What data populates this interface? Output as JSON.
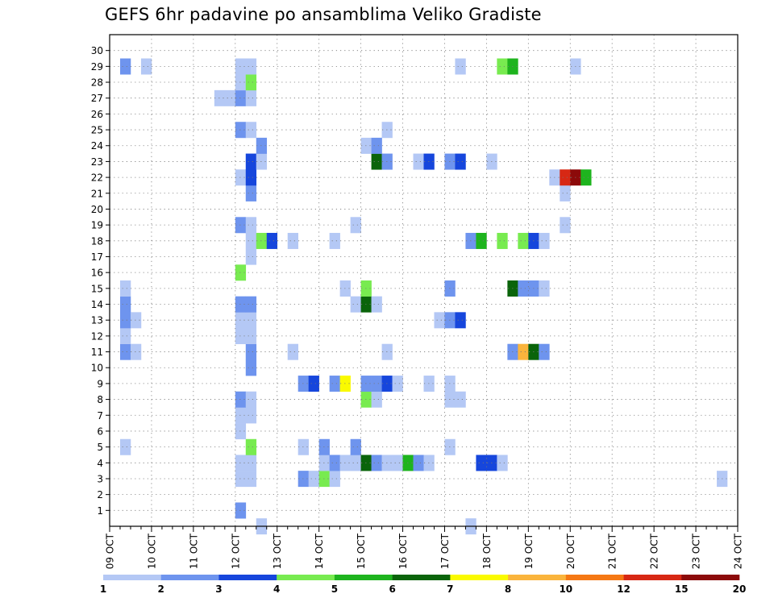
{
  "chart_data": {
    "type": "heatmap",
    "title": "GEFS 6hr padavine po ansamblima Veliko Gradiste",
    "x_ticks": [
      "09 OCT",
      "10 OCT",
      "11 OCT",
      "12 OCT",
      "13 OCT",
      "14 OCT",
      "15 OCT",
      "16 OCT",
      "17 OCT",
      "18 OCT",
      "19 OCT",
      "20 OCT",
      "21 OCT",
      "22 OCT",
      "23 OCT",
      "24 OCT"
    ],
    "y_ticks": [
      "1",
      "2",
      "3",
      "4",
      "5",
      "6",
      "7",
      "8",
      "9",
      "10",
      "11",
      "12",
      "13",
      "14",
      "15",
      "16",
      "17",
      "18",
      "19",
      "20",
      "21",
      "22",
      "23",
      "24",
      "25",
      "26",
      "27",
      "28",
      "29",
      "30"
    ],
    "x_range": [
      "09 OCT 00Z",
      "24 OCT 00Z"
    ],
    "y_range": [
      0,
      30
    ],
    "grid": true,
    "colorbar": {
      "labels": [
        "1",
        "2",
        "3",
        "4",
        "5",
        "6",
        "7",
        "8",
        "10",
        "12",
        "15",
        "20"
      ],
      "colors": [
        "#b4c8f5",
        "#6e94ee",
        "#1646dc",
        "#78eb50",
        "#1eb41e",
        "#0a640a",
        "#fafa00",
        "#fab43c",
        "#f57814",
        "#d72814",
        "#8c0a0a"
      ]
    },
    "x_time_axis_note": "x values are forecast steps from 09 OCT 00Z in 6-hour units",
    "cells": [
      [
        1,
        12,
        1
      ],
      [
        1,
        12,
        2
      ],
      [
        3,
        12,
        1
      ],
      [
        3,
        13,
        1
      ],
      [
        3,
        18,
        2
      ],
      [
        3,
        19,
        1
      ],
      [
        3,
        20,
        4
      ],
      [
        3,
        21,
        1
      ],
      [
        3,
        58,
        1
      ],
      [
        4,
        12,
        1
      ],
      [
        4,
        13,
        1
      ],
      [
        4,
        20,
        1
      ],
      [
        4,
        21,
        2
      ],
      [
        4,
        22,
        1
      ],
      [
        4,
        23,
        1
      ],
      [
        4,
        24,
        6
      ],
      [
        4,
        25,
        2
      ],
      [
        4,
        26,
        1
      ],
      [
        4,
        27,
        1
      ],
      [
        4,
        28,
        5
      ],
      [
        4,
        29,
        2
      ],
      [
        4,
        30,
        1
      ],
      [
        4,
        35,
        3
      ],
      [
        4,
        36,
        3
      ],
      [
        4,
        37,
        1
      ],
      [
        5,
        1,
        1
      ],
      [
        5,
        13,
        4
      ],
      [
        5,
        18,
        1
      ],
      [
        5,
        20,
        2
      ],
      [
        5,
        23,
        2
      ],
      [
        5,
        32,
        1
      ],
      [
        6,
        12,
        1
      ],
      [
        7,
        12,
        1
      ],
      [
        7,
        13,
        1
      ],
      [
        8,
        12,
        2
      ],
      [
        8,
        13,
        1
      ],
      [
        8,
        24,
        4
      ],
      [
        8,
        25,
        1
      ],
      [
        8,
        32,
        1
      ],
      [
        8,
        33,
        1
      ],
      [
        9,
        18,
        2
      ],
      [
        9,
        19,
        3
      ],
      [
        9,
        21,
        2
      ],
      [
        9,
        22,
        7
      ],
      [
        9,
        24,
        2
      ],
      [
        9,
        25,
        2
      ],
      [
        9,
        26,
        3
      ],
      [
        9,
        27,
        1
      ],
      [
        9,
        30,
        1
      ],
      [
        9,
        32,
        1
      ],
      [
        10,
        13,
        2
      ],
      [
        11,
        1,
        2
      ],
      [
        11,
        2,
        1
      ],
      [
        11,
        13,
        2
      ],
      [
        11,
        17,
        1
      ],
      [
        11,
        26,
        1
      ],
      [
        11,
        38,
        2
      ],
      [
        11,
        39,
        8
      ],
      [
        11,
        40,
        6
      ],
      [
        11,
        41,
        2
      ],
      [
        12,
        1,
        1
      ],
      [
        12,
        12,
        1
      ],
      [
        12,
        13,
        1
      ],
      [
        13,
        1,
        2
      ],
      [
        13,
        2,
        1
      ],
      [
        13,
        12,
        1
      ],
      [
        13,
        13,
        1
      ],
      [
        13,
        31,
        1
      ],
      [
        13,
        32,
        2
      ],
      [
        13,
        33,
        3
      ],
      [
        14,
        1,
        2
      ],
      [
        14,
        12,
        2
      ],
      [
        14,
        13,
        2
      ],
      [
        14,
        23,
        1
      ],
      [
        14,
        24,
        6
      ],
      [
        14,
        25,
        1
      ],
      [
        15,
        1,
        1
      ],
      [
        15,
        22,
        1
      ],
      [
        15,
        24,
        4
      ],
      [
        15,
        32,
        2
      ],
      [
        15,
        38,
        6
      ],
      [
        15,
        39,
        2
      ],
      [
        15,
        40,
        2
      ],
      [
        15,
        41,
        1
      ],
      [
        16,
        12,
        4
      ],
      [
        17,
        13,
        1
      ],
      [
        18,
        13,
        1
      ],
      [
        18,
        14,
        4
      ],
      [
        18,
        15,
        3
      ],
      [
        18,
        17,
        1
      ],
      [
        18,
        21,
        1
      ],
      [
        18,
        34,
        2
      ],
      [
        18,
        35,
        5
      ],
      [
        18,
        37,
        4
      ],
      [
        18,
        39,
        4
      ],
      [
        18,
        40,
        3
      ],
      [
        18,
        41,
        1
      ],
      [
        19,
        12,
        2
      ],
      [
        19,
        13,
        1
      ],
      [
        19,
        23,
        1
      ],
      [
        19,
        43,
        1
      ],
      [
        21,
        13,
        2
      ],
      [
        21,
        43,
        1
      ],
      [
        22,
        12,
        1
      ],
      [
        22,
        13,
        3
      ],
      [
        22,
        42,
        1
      ],
      [
        22,
        43,
        10
      ],
      [
        22,
        44,
        12
      ],
      [
        22,
        45,
        5
      ],
      [
        23,
        13,
        3
      ],
      [
        23,
        14,
        1
      ],
      [
        23,
        25,
        6
      ],
      [
        23,
        26,
        2
      ],
      [
        23,
        29,
        1
      ],
      [
        23,
        30,
        3
      ],
      [
        23,
        32,
        2
      ],
      [
        23,
        33,
        3
      ],
      [
        23,
        36,
        1
      ],
      [
        24,
        14,
        2
      ],
      [
        24,
        24,
        1
      ],
      [
        24,
        25,
        2
      ],
      [
        25,
        12,
        2
      ],
      [
        25,
        13,
        1
      ],
      [
        25,
        26,
        1
      ],
      [
        27,
        10,
        1
      ],
      [
        27,
        11,
        1
      ],
      [
        27,
        12,
        2
      ],
      [
        27,
        13,
        1
      ],
      [
        28,
        12,
        1
      ],
      [
        28,
        13,
        4
      ],
      [
        29,
        1,
        2
      ],
      [
        29,
        3,
        1
      ],
      [
        29,
        12,
        1
      ],
      [
        29,
        13,
        1
      ],
      [
        29,
        33,
        1
      ],
      [
        29,
        37,
        4
      ],
      [
        29,
        38,
        5
      ],
      [
        29,
        44,
        1
      ],
      [
        0,
        14,
        1
      ],
      [
        0,
        34,
        1
      ]
    ]
  }
}
